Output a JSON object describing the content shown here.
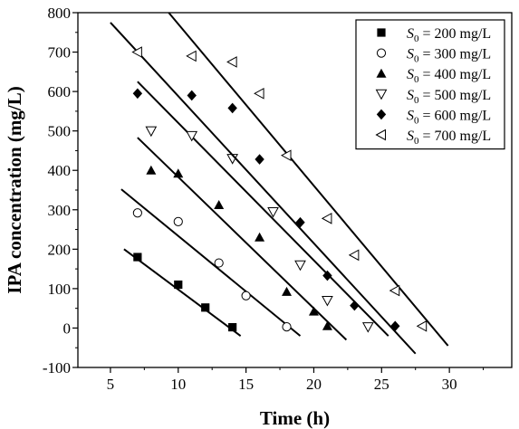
{
  "chart_data": {
    "type": "scatter",
    "xlabel": "Time (h)",
    "ylabel": "IPA concentration (mg/L)",
    "xlim": [
      2.6,
      34.6
    ],
    "ylim": [
      -100,
      800
    ],
    "xticks": [
      5,
      10,
      15,
      20,
      25,
      30
    ],
    "yticks": [
      -100,
      0,
      100,
      200,
      300,
      400,
      500,
      600,
      700,
      800
    ],
    "grid": false,
    "legend_position": "top-right",
    "series": [
      {
        "name": "S0 = 200 mg/L",
        "label": {
          "pre": "S",
          "sub": "0",
          "post": " = 200 mg/L"
        },
        "marker": "square-filled",
        "points": [
          [
            7,
            180
          ],
          [
            10,
            110
          ],
          [
            12,
            52
          ],
          [
            14,
            2
          ]
        ],
        "fit_line": {
          "x": [
            6,
            14.6
          ],
          "y": [
            200,
            -20
          ]
        }
      },
      {
        "name": "S0 = 300 mg/L",
        "label": {
          "pre": "S",
          "sub": "0",
          "post": " = 300 mg/L"
        },
        "marker": "circle-open",
        "points": [
          [
            7,
            292
          ],
          [
            10,
            270
          ],
          [
            13,
            165
          ],
          [
            15,
            82
          ],
          [
            18,
            3
          ]
        ],
        "fit_line": {
          "x": [
            5.8,
            19
          ],
          "y": [
            352,
            -20
          ]
        }
      },
      {
        "name": "S0 = 400 mg/L",
        "label": {
          "pre": "S",
          "sub": "0",
          "post": " = 400 mg/L"
        },
        "marker": "triangle-up-filled",
        "points": [
          [
            8,
            400
          ],
          [
            10,
            392
          ],
          [
            13,
            312
          ],
          [
            16,
            230
          ],
          [
            18,
            92
          ],
          [
            20,
            42
          ],
          [
            21,
            5
          ]
        ],
        "fit_line": {
          "x": [
            7,
            22.4
          ],
          "y": [
            483,
            -30
          ]
        }
      },
      {
        "name": "S0 = 500 mg/L",
        "label": {
          "pre": "S",
          "sub": "0",
          "post": " = 500 mg/L"
        },
        "marker": "triangle-down-open",
        "points": [
          [
            8,
            500
          ],
          [
            11,
            488
          ],
          [
            14,
            430
          ],
          [
            17,
            295
          ],
          [
            19,
            160
          ],
          [
            21,
            70
          ],
          [
            24,
            3
          ]
        ],
        "fit_line": {
          "x": [
            7,
            25.5
          ],
          "y": [
            625,
            -20
          ]
        }
      },
      {
        "name": "S0 = 600 mg/L",
        "label": {
          "pre": "S",
          "sub": "0",
          "post": " = 600 mg/L"
        },
        "marker": "diamond-filled",
        "points": [
          [
            7,
            595
          ],
          [
            11,
            590
          ],
          [
            14,
            558
          ],
          [
            16,
            428
          ],
          [
            19,
            268
          ],
          [
            21,
            133
          ],
          [
            23,
            57
          ],
          [
            26,
            5
          ]
        ],
        "fit_line": {
          "x": [
            5,
            27.5
          ],
          "y": [
            775,
            -65
          ]
        }
      },
      {
        "name": "S0 = 700 mg/L",
        "label": {
          "pre": "S",
          "sub": "0",
          "post": " = 700 mg/L"
        },
        "marker": "triangle-left-open",
        "points": [
          [
            7,
            700
          ],
          [
            11,
            690
          ],
          [
            14,
            675
          ],
          [
            16,
            595
          ],
          [
            18,
            438
          ],
          [
            21,
            278
          ],
          [
            23,
            185
          ],
          [
            26,
            95
          ],
          [
            28,
            5
          ]
        ],
        "fit_line": {
          "x": [
            9.3,
            29.9
          ],
          "y": [
            800,
            -45
          ]
        }
      }
    ]
  }
}
